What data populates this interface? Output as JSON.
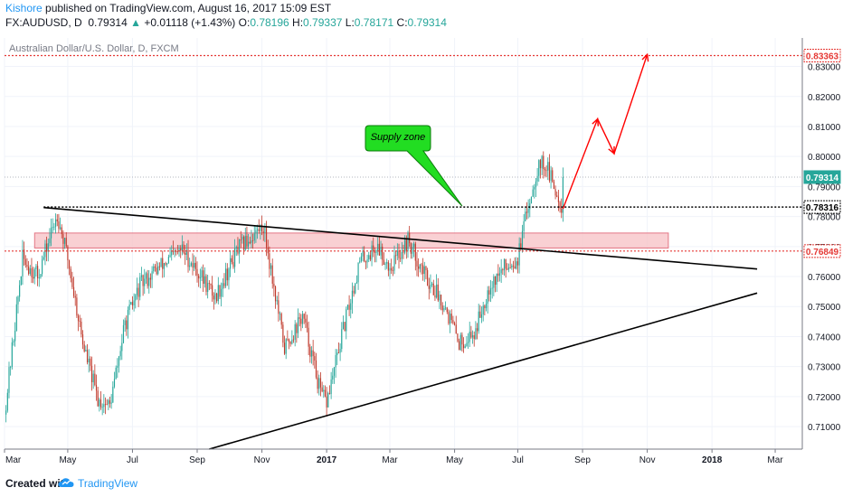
{
  "header": {
    "author": "Kishore",
    "published_text": "published on TradingView.com, August 16, 2017 15:09 EST",
    "symbol": "FX:AUDUSD, D",
    "last": "0.79314",
    "change": "+0.01118 (+1.43%)",
    "o_label": "O:",
    "o_value": "0.78196",
    "h_label": "H:",
    "h_value": "0.79337",
    "l_label": "L:",
    "l_value": "0.78171",
    "c_label": "C:",
    "c_value": "0.79314"
  },
  "footer": {
    "created_with": "Created with",
    "brand": "TradingView"
  },
  "colors": {
    "up": "#26a69a",
    "down": "#c0392b",
    "accent": "#2196f3",
    "zone": "#f8c8cc",
    "callout": "#22dd22",
    "projection": "#ff0000"
  },
  "chart_data": {
    "type": "candlestick",
    "title": "Australian Dollar/U.S. Dollar, D, FXCM",
    "y_range": [
      0.7025,
      0.8395
    ],
    "y_ticks": [
      0.71,
      0.72,
      0.73,
      0.74,
      0.75,
      0.76,
      0.77,
      0.78,
      0.79,
      0.8,
      0.81,
      0.82,
      0.83
    ],
    "y_tick_labels": [
      "0.71000",
      "0.72000",
      "0.73000",
      "0.74000",
      "0.75000",
      "0.76000",
      "0.77000",
      "0.78000",
      "0.79000",
      "0.80000",
      "0.81000",
      "0.82000",
      "0.83000"
    ],
    "x_axis_labels": [
      "Mar",
      "May",
      "Jul",
      "Sep",
      "Nov",
      "2017",
      "Mar",
      "May",
      "Jul",
      "Sep",
      "Nov",
      "2018",
      "Mar"
    ],
    "x_axis_label_index": [
      0,
      42,
      85,
      128,
      171,
      214,
      256,
      299,
      341,
      384,
      427,
      470,
      512
    ],
    "n_days": 530,
    "price_path": [
      [
        0,
        0.714
      ],
      [
        12,
        0.766
      ],
      [
        22,
        0.76
      ],
      [
        35,
        0.781
      ],
      [
        42,
        0.766
      ],
      [
        52,
        0.738
      ],
      [
        62,
        0.719
      ],
      [
        70,
        0.717
      ],
      [
        80,
        0.744
      ],
      [
        90,
        0.757
      ],
      [
        100,
        0.762
      ],
      [
        118,
        0.769
      ],
      [
        128,
        0.762
      ],
      [
        140,
        0.753
      ],
      [
        155,
        0.769
      ],
      [
        172,
        0.777
      ],
      [
        186,
        0.736
      ],
      [
        198,
        0.747
      ],
      [
        210,
        0.721
      ],
      [
        214,
        0.718
      ],
      [
        224,
        0.74
      ],
      [
        236,
        0.765
      ],
      [
        248,
        0.77
      ],
      [
        256,
        0.763
      ],
      [
        268,
        0.772
      ],
      [
        280,
        0.76
      ],
      [
        292,
        0.751
      ],
      [
        302,
        0.738
      ],
      [
        312,
        0.741
      ],
      [
        322,
        0.757
      ],
      [
        334,
        0.764
      ],
      [
        341,
        0.766
      ],
      [
        348,
        0.784
      ],
      [
        355,
        0.798
      ],
      [
        360,
        0.797
      ],
      [
        364,
        0.791
      ],
      [
        371,
        0.7826
      ]
    ],
    "last_index": 371,
    "last_price": 0.79314,
    "price_labels": [
      {
        "value": 0.83363,
        "text": "0.83363",
        "style": "red"
      },
      {
        "value": 0.79314,
        "text": "0.79314",
        "style": "green"
      },
      {
        "value": 0.78316,
        "text": "0.78316",
        "style": "black"
      },
      {
        "value": 0.76849,
        "text": "0.76849",
        "style": "red"
      }
    ],
    "h_lines": [
      {
        "value": 0.83363,
        "style": "red-dotted",
        "from_index": 0
      },
      {
        "value": 0.78316,
        "style": "black-dotted",
        "from_index": 26
      },
      {
        "value": 0.76849,
        "style": "red-dotted",
        "from_index": 0
      },
      {
        "value": 0.79314,
        "style": "gray-dotted",
        "from_index": 0
      }
    ],
    "zone": {
      "from_index": 20,
      "to_index": 441,
      "top": 0.7745,
      "bottom": 0.7695
    },
    "trendlines": [
      {
        "points": [
          [
            26,
            0.783
          ],
          [
            500,
            0.7625
          ]
        ]
      },
      {
        "points": [
          [
            136,
            0.7025
          ],
          [
            500,
            0.7545
          ]
        ]
      }
    ],
    "projection": [
      [
        371,
        0.7826
      ],
      [
        394,
        0.8125
      ],
      [
        405,
        0.801
      ],
      [
        427,
        0.834
      ]
    ],
    "annotation": {
      "text": "Supply zone",
      "pointer": [
        304,
        0.7835
      ]
    }
  }
}
